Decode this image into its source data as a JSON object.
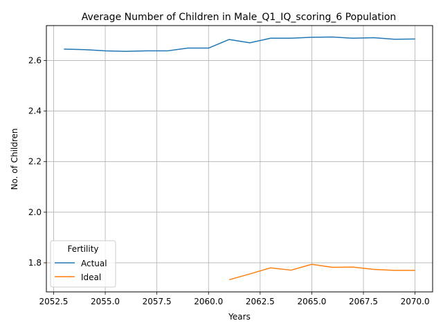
{
  "chart_data": {
    "type": "line",
    "title": "Average Number of Children in Male_Q1_IQ_scoring_6 Population",
    "xlabel": "Years",
    "ylabel": "No. of Children",
    "xlim": [
      2052.15,
      2070.85
    ],
    "ylim": [
      1.685,
      2.738
    ],
    "x_ticks": [
      2052.5,
      2055.0,
      2057.5,
      2060.0,
      2062.5,
      2065.0,
      2067.5,
      2070.0
    ],
    "x_tick_labels": [
      "2052.5",
      "2055.0",
      "2057.5",
      "2060.0",
      "2062.5",
      "2065.0",
      "2067.5",
      "2070.0"
    ],
    "y_ticks": [
      1.8,
      2.0,
      2.2,
      2.4,
      2.6
    ],
    "y_tick_labels": [
      "1.8",
      "2.0",
      "2.2",
      "2.4",
      "2.6"
    ],
    "grid": true,
    "legend": {
      "title": "Fertility",
      "placement": "lower-left"
    },
    "series": [
      {
        "name": "Actual",
        "color": "#1f77b4",
        "x": [
          2053,
          2054,
          2055,
          2056,
          2057,
          2058,
          2059,
          2060,
          2061,
          2062,
          2063,
          2064,
          2065,
          2066,
          2067,
          2068,
          2069,
          2070
        ],
        "values": [
          2.645,
          2.643,
          2.638,
          2.636,
          2.638,
          2.638,
          2.649,
          2.649,
          2.683,
          2.67,
          2.688,
          2.688,
          2.692,
          2.693,
          2.688,
          2.69,
          2.684,
          2.685
        ]
      },
      {
        "name": "Ideal",
        "color": "#ff7f0e",
        "x": [
          2061,
          2062,
          2063,
          2064,
          2065,
          2066,
          2067,
          2068,
          2069,
          2070
        ],
        "values": [
          1.733,
          1.756,
          1.78,
          1.771,
          1.794,
          1.782,
          1.783,
          1.774,
          1.77,
          1.77
        ]
      }
    ]
  }
}
